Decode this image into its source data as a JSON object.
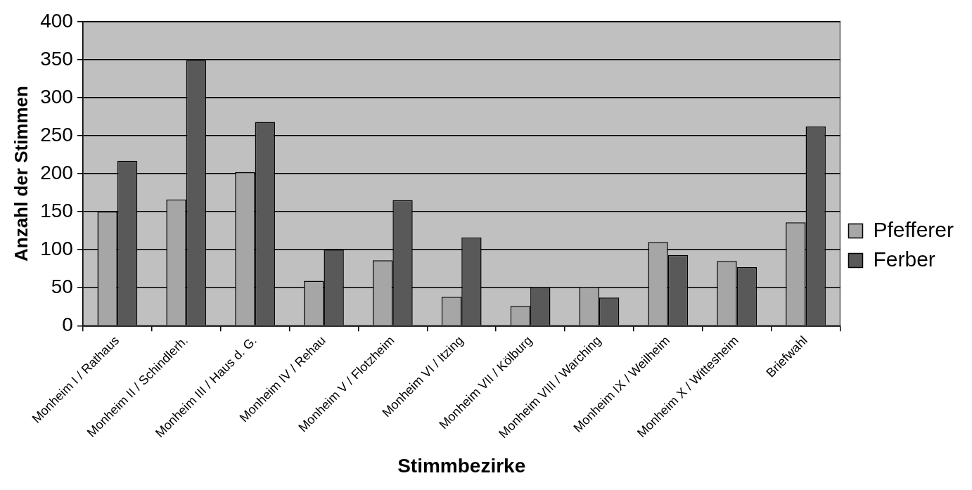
{
  "chart_data": {
    "type": "bar",
    "xlabel": "Stimmbezirke",
    "ylabel": "Anzahl der Stimmen",
    "categories": [
      "Monheim I / Rathaus",
      "Monheim II / Schindlerh.",
      "Monheim III / Haus d. G.",
      "Monheim IV / Rehau",
      "Monheim V / Flotzheim",
      "Monheim VI / Itzing",
      "Monheim VII / Kölburg",
      "Monheim VIII / Warching",
      "Monheim IX / Weilheim",
      "Monheim X / Wittesheim",
      "Briefwahl"
    ],
    "series": [
      {
        "name": "Pfefferer",
        "color": "#a6a6a6",
        "values": [
          150,
          166,
          202,
          59,
          86,
          38,
          26,
          51,
          110,
          85,
          136
        ]
      },
      {
        "name": "Ferber",
        "color": "#595959",
        "values": [
          217,
          349,
          268,
          100,
          165,
          116,
          51,
          37,
          93,
          77,
          262
        ]
      }
    ],
    "ylim": [
      0,
      400
    ],
    "yticks": [
      0,
      50,
      100,
      150,
      200,
      250,
      300,
      350,
      400
    ],
    "grid": "y",
    "legend": "right"
  }
}
